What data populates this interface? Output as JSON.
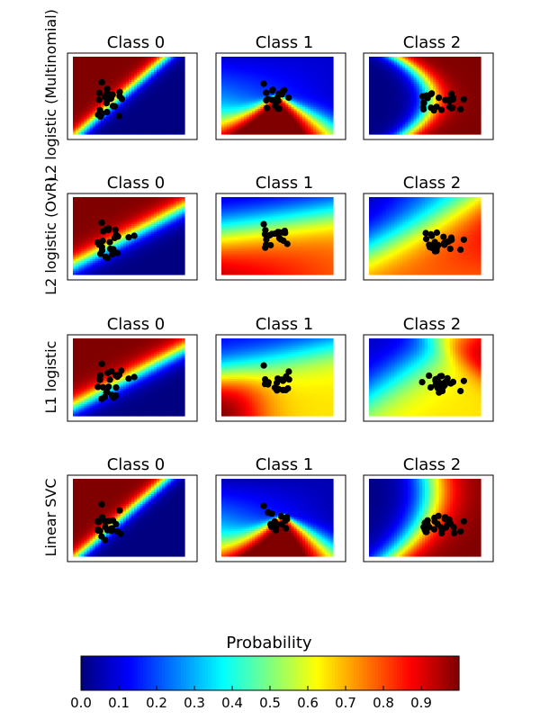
{
  "chart_data": {
    "type": "heatmap",
    "colormap": "jet",
    "rows": [
      {
        "label": "L2 logistic (Multinomial)",
        "panels": [
          {
            "title": "Class 0",
            "field": {
              "mode": "sigmoid",
              "a": 1.6,
              "b": 1.45,
              "c": -1.0,
              "k": 14,
              "invert": false
            }
          },
          {
            "title": "Class 1",
            "field": {
              "mode": "wedge",
              "cx": 0.52,
              "cy": 0.58,
              "spread": 0.9,
              "k": 7
            }
          },
          {
            "title": "Class 2",
            "field": {
              "mode": "sigmoid",
              "a": 1.9,
              "b": -1.2,
              "c": -0.6,
              "k": 13,
              "invert": false
            }
          }
        ]
      },
      {
        "label": "L2 logistic (OvR)",
        "panels": [
          {
            "title": "Class 0",
            "field": {
              "mode": "sigmoid",
              "a": -1.0,
              "b": 1.1,
              "c": 0.2,
              "k": 12,
              "invert": false
            }
          },
          {
            "title": "Class 1",
            "field": {
              "mode": "linear",
              "gx": 0.32,
              "gy": 0.55,
              "base": 0.1
            }
          },
          {
            "title": "Class 2",
            "field": {
              "mode": "linear",
              "gx": 0.55,
              "gy": 0.55,
              "base": 0.0
            }
          }
        ]
      },
      {
        "label": "L1 logistic",
        "panels": [
          {
            "title": "Class 0",
            "field": {
              "mode": "sigmoid",
              "a": -1.0,
              "b": 1.1,
              "c": 0.25,
              "k": 12,
              "invert": false
            }
          },
          {
            "title": "Class 1",
            "field": {
              "mode": "linear2",
              "gx": 0.35,
              "gy": 0.6,
              "base": 0.05
            }
          },
          {
            "title": "Class 2",
            "field": {
              "mode": "linear3",
              "gx": 0.6,
              "gy": 0.45,
              "base": 0.0
            }
          }
        ]
      },
      {
        "label": "Linear SVC",
        "panels": [
          {
            "title": "Class 0",
            "field": {
              "mode": "sigmoid",
              "a": 1.6,
              "b": 1.45,
              "c": -1.0,
              "k": 14,
              "invert": false
            }
          },
          {
            "title": "Class 1",
            "field": {
              "mode": "wedge",
              "cx": 0.55,
              "cy": 0.58,
              "spread": 0.85,
              "k": 6
            }
          },
          {
            "title": "Class 2",
            "field": {
              "mode": "sigmoid",
              "a": 1.7,
              "b": -1.0,
              "c": -0.7,
              "k": 9,
              "invert": false
            }
          }
        ]
      }
    ],
    "colorbar": {
      "label": "Probability",
      "range": [
        0.0,
        1.0
      ],
      "ticks": [
        0.0,
        0.1,
        0.2,
        0.3,
        0.4,
        0.5,
        0.6,
        0.7,
        0.8,
        0.9
      ],
      "tick_labels": [
        "0.0",
        "0.1",
        "0.2",
        "0.3",
        "0.4",
        "0.5",
        "0.6",
        "0.7",
        "0.8",
        "0.9"
      ]
    }
  }
}
